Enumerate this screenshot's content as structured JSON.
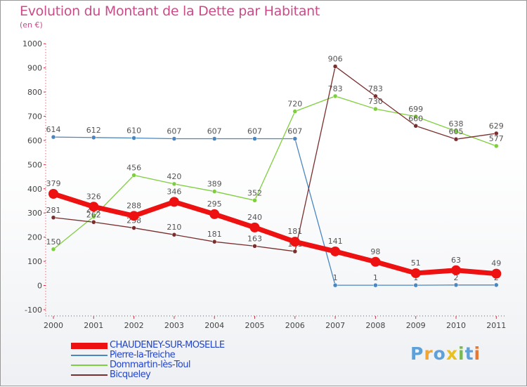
{
  "chart_data": {
    "type": "line",
    "title": "Evolution du Montant de la Dette par Habitant",
    "subtitle": "(en €)",
    "xlabel": "",
    "ylabel": "",
    "categories": [
      "2000",
      "2001",
      "2002",
      "2003",
      "2004",
      "2005",
      "2006",
      "2007",
      "2008",
      "2009",
      "2010",
      "2011"
    ],
    "ylim": [
      -100,
      1000
    ],
    "yticks": [
      "-100",
      "0",
      "100",
      "200",
      "300",
      "400",
      "500",
      "600",
      "700",
      "800",
      "900",
      "1000"
    ],
    "grid": false,
    "legend_position": "bottom-left",
    "series": [
      {
        "name": "Pierre-la-Treiche",
        "color": "#4a86c0",
        "values": [
          614,
          612,
          610,
          607,
          607,
          607,
          607,
          1,
          1,
          1,
          2,
          2
        ]
      },
      {
        "name": "Dommartin-lès-Toul",
        "color": "#7fce3f",
        "values": [
          150,
          285,
          456,
          420,
          389,
          352,
          720,
          783,
          730,
          699,
          638,
          577
        ]
      },
      {
        "name": "Bicqueley",
        "color": "#7a2e2e",
        "values": [
          281,
          262,
          238,
          210,
          181,
          163,
          141,
          906,
          783,
          660,
          605,
          629
        ]
      },
      {
        "name": "CHAUDENEY-SUR-MOSELLE",
        "color": "#ee1111",
        "values": [
          379,
          326,
          288,
          346,
          295,
          240,
          181,
          141,
          98,
          51,
          63,
          49
        ]
      }
    ],
    "legend_order": [
      {
        "name": "CHAUDENEY-SUR-MOSELLE",
        "color": "#ee1111",
        "weight": "thick"
      },
      {
        "name": "Pierre-la-Treiche",
        "color": "#4a86c0",
        "weight": "thin"
      },
      {
        "name": "Dommartin-lès-Toul",
        "color": "#7fce3f",
        "weight": "thin"
      },
      {
        "name": "Bicqueley",
        "color": "#7a2e2e",
        "weight": "thin"
      }
    ]
  },
  "logo": {
    "letters": [
      "P",
      "r",
      "o",
      "x",
      "i",
      "t",
      "i"
    ],
    "colors": [
      "#5fa0d8",
      "#f2a530",
      "#5fa0d8",
      "#e8c020",
      "#7ab850",
      "#5fa0d8",
      "#e87830"
    ]
  }
}
